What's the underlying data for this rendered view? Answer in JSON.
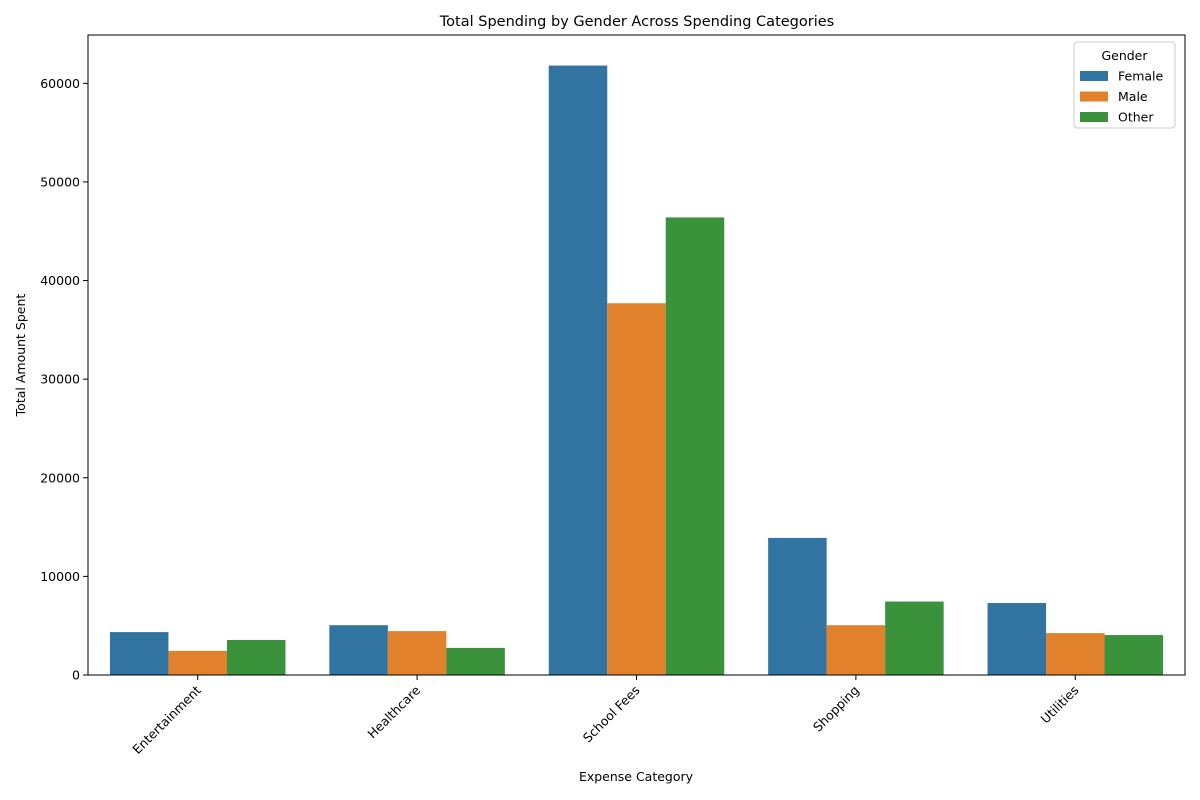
{
  "chart_data": {
    "type": "bar",
    "title": "Total Spending by Gender Across Spending Categories",
    "xlabel": "Expense Category",
    "ylabel": "Total Amount Spent",
    "categories": [
      "Entertainment",
      "Healthcare",
      "School Fees",
      "Shopping",
      "Utilities"
    ],
    "ylim": [
      0,
      64900
    ],
    "yticks": [
      0,
      10000,
      20000,
      30000,
      40000,
      50000,
      60000
    ],
    "ytick_labels": [
      "0",
      "10000",
      "20000",
      "30000",
      "40000",
      "50000",
      "60000"
    ],
    "grid": false,
    "legend": {
      "title": "Gender",
      "placement": "top-right"
    },
    "series": [
      {
        "name": "Female",
        "color": "#3274a1",
        "values": [
          4350,
          5050,
          61800,
          13900,
          7300
        ]
      },
      {
        "name": "Male",
        "color": "#e1812c",
        "values": [
          2450,
          4450,
          37700,
          5050,
          4250
        ]
      },
      {
        "name": "Other",
        "color": "#3a923a",
        "values": [
          3550,
          2750,
          46400,
          7450,
          4050
        ]
      }
    ]
  }
}
